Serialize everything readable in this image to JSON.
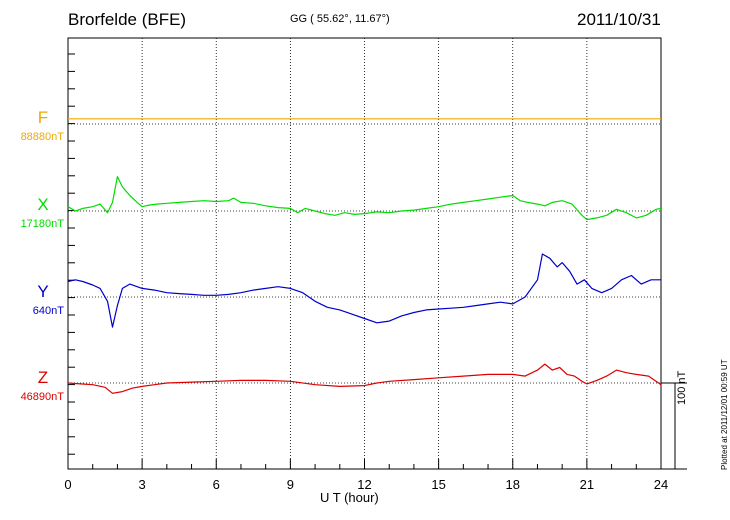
{
  "header": {
    "station": "Brorfelde (BFE)",
    "coords": "GG ( 55.62°,  11.67°)",
    "date": "2011/10/31"
  },
  "side_note": "Plotted at 2011/12/01 00:59 UT",
  "scale_bar": {
    "label": "100 nT",
    "value_nT": 100
  },
  "chart_data": {
    "type": "line",
    "title": "Brorfelde (BFE)",
    "xlabel": "U T (hour)",
    "ylabel": "",
    "xlim": [
      0,
      24
    ],
    "xticks": [
      0,
      3,
      6,
      9,
      12,
      15,
      18,
      21,
      24
    ],
    "grid": true,
    "series": [
      {
        "name": "F",
        "baseline": "88880nT",
        "color": "#f0a800",
        "x": [
          0,
          24
        ],
        "values": [
          6,
          6
        ]
      },
      {
        "name": "X",
        "baseline": "17180nT",
        "color": "#00dd00",
        "x": [
          0,
          0.3,
          0.6,
          1,
          1.3,
          1.6,
          1.8,
          2.0,
          2.2,
          2.5,
          2.8,
          3.0,
          3.3,
          3.6,
          4,
          4.5,
          5,
          5.5,
          6,
          6.5,
          6.7,
          7,
          7.5,
          8,
          8.5,
          9,
          9.3,
          9.6,
          10,
          10.4,
          10.8,
          11.2,
          11.6,
          12,
          12.5,
          13,
          13.5,
          14,
          14.5,
          15,
          15.5,
          16,
          16.5,
          17,
          17.5,
          18,
          18.3,
          18.6,
          19,
          19.3,
          19.6,
          20,
          20.4,
          20.8,
          21,
          21.4,
          21.8,
          22.2,
          22.6,
          23,
          23.4,
          23.8,
          24
        ],
        "values": [
          5,
          0,
          3,
          5,
          8,
          -2,
          10,
          40,
          28,
          18,
          10,
          5,
          7,
          8,
          9,
          10,
          11,
          12,
          11,
          12,
          15,
          10,
          9,
          6,
          4,
          3,
          -2,
          3,
          0,
          -3,
          -5,
          -2,
          -4,
          -3,
          -1,
          -2,
          0,
          1,
          3,
          5,
          8,
          10,
          12,
          14,
          16,
          18,
          12,
          10,
          8,
          6,
          10,
          12,
          8,
          -5,
          -10,
          -8,
          -5,
          2,
          -2,
          -8,
          -5,
          2,
          3
        ]
      },
      {
        "name": "Y",
        "baseline": "640nT",
        "color": "#0000cc",
        "x": [
          0,
          0.3,
          0.6,
          1,
          1.3,
          1.6,
          1.8,
          2.0,
          2.2,
          2.5,
          2.8,
          3.0,
          3.5,
          4,
          4.5,
          5,
          5.5,
          6,
          6.5,
          7,
          7.5,
          8,
          8.5,
          9,
          9.5,
          10,
          10.5,
          11,
          11.5,
          12,
          12.5,
          13,
          13.5,
          14,
          14.5,
          15,
          15.5,
          16,
          16.5,
          17,
          17.5,
          18,
          18.5,
          19,
          19.2,
          19.5,
          19.8,
          20,
          20.3,
          20.6,
          20.9,
          21.2,
          21.6,
          22,
          22.4,
          22.8,
          23.2,
          23.6,
          24
        ],
        "values": [
          18,
          20,
          18,
          14,
          10,
          -5,
          -35,
          -10,
          10,
          15,
          12,
          10,
          8,
          5,
          4,
          3,
          2,
          2,
          3,
          5,
          8,
          10,
          12,
          10,
          5,
          -5,
          -12,
          -15,
          -20,
          -25,
          -30,
          -28,
          -22,
          -18,
          -15,
          -14,
          -13,
          -12,
          -10,
          -8,
          -6,
          -8,
          0,
          20,
          50,
          45,
          35,
          40,
          30,
          15,
          20,
          10,
          5,
          10,
          20,
          25,
          15,
          20,
          20
        ]
      },
      {
        "name": "Z",
        "baseline": "46890nT",
        "color": "#dd0000",
        "x": [
          0,
          0.5,
          1,
          1.5,
          1.8,
          2.2,
          2.6,
          3,
          3.5,
          4,
          5,
          6,
          7,
          8,
          9,
          10,
          11,
          12,
          12.5,
          13,
          14,
          15,
          16,
          17,
          18,
          18.5,
          19,
          19.3,
          19.6,
          19.9,
          20.2,
          20.5,
          20.8,
          21,
          21.4,
          21.8,
          22.2,
          22.6,
          23,
          23.5,
          24
        ],
        "values": [
          0,
          -1,
          -2,
          -5,
          -12,
          -10,
          -6,
          -4,
          -2,
          0,
          1,
          2,
          3,
          3,
          2,
          -2,
          -4,
          -3,
          0,
          2,
          4,
          6,
          8,
          10,
          10,
          8,
          15,
          22,
          15,
          18,
          10,
          8,
          2,
          -1,
          3,
          8,
          15,
          12,
          10,
          8,
          -2
        ]
      }
    ]
  }
}
